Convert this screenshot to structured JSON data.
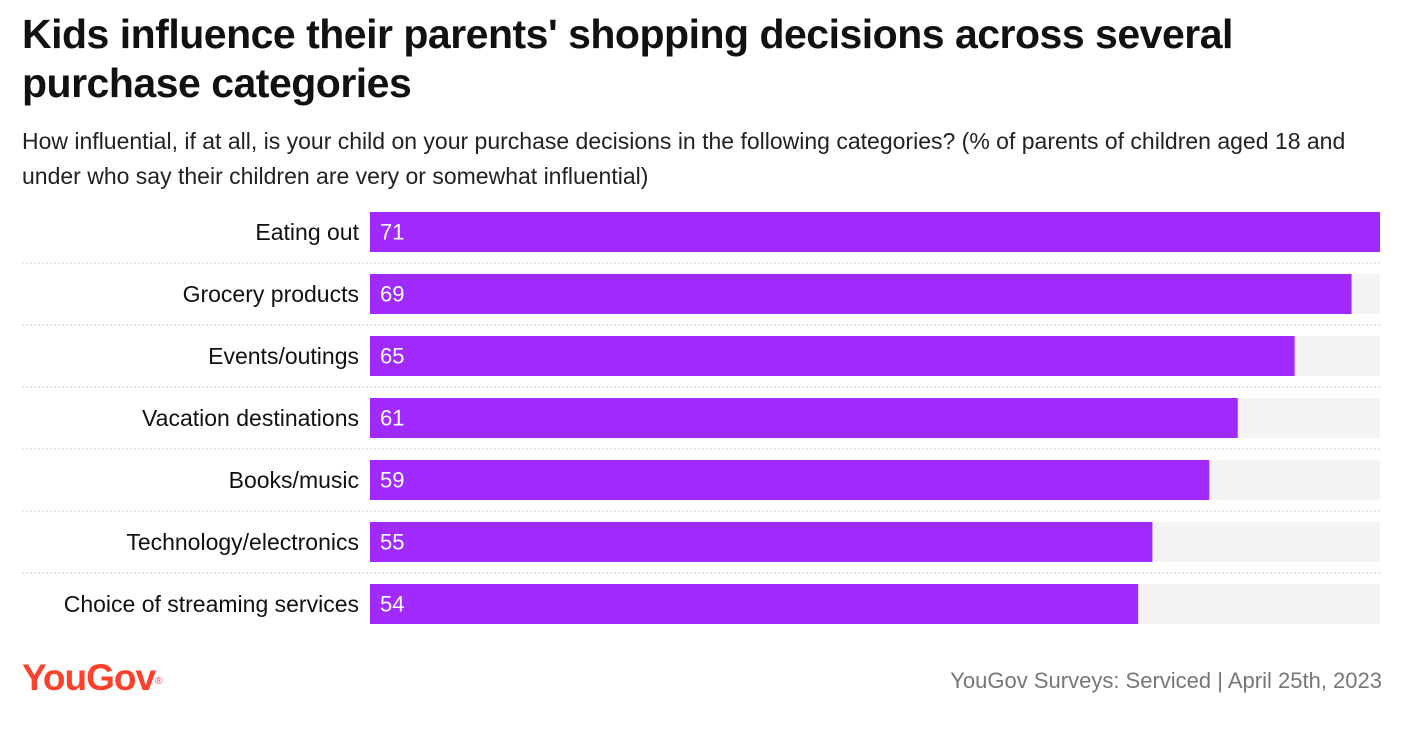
{
  "header": {
    "title": "Kids influence their parents' shopping decisions across several purchase categories",
    "subtitle": "How influential, if at all, is your child on your purchase decisions in the following categories? (% of parents of children aged 18 and under who say their children are very or somewhat influential)"
  },
  "chart_data": {
    "type": "bar",
    "orientation": "horizontal",
    "categories": [
      "Eating out",
      "Grocery products",
      "Events/outings",
      "Vacation destinations",
      "Books/music",
      "Technology/electronics",
      "Choice of streaming services"
    ],
    "values": [
      71,
      69,
      65,
      61,
      59,
      55,
      54
    ],
    "xlim": [
      0,
      71
    ],
    "grid": false,
    "colors": {
      "bar": "#a12bff",
      "track": "#f3f3f3",
      "separator": "#cccccc"
    }
  },
  "footer": {
    "logo": "YouGov",
    "logo_mark": "®",
    "source": "YouGov Surveys: Serviced | April 25th, 2023"
  }
}
